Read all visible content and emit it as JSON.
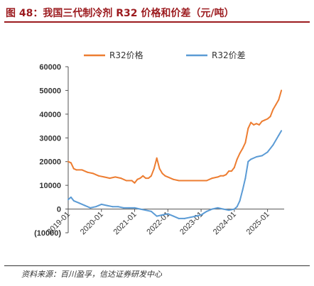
{
  "figure": {
    "title": "图 48：我国三代制冷剂 R32 价格和价差（元/吨）",
    "source": "资料来源：百川盈孚，信达证券研发中心"
  },
  "colors": {
    "title": "#9c1b1f",
    "price_line": "#ed7d31",
    "spread_line": "#5b9bd5",
    "negative_tick": "#c00000"
  },
  "chart_data": {
    "type": "line",
    "title": "",
    "xlabel": "",
    "ylabel": "",
    "ylim": [
      -10000,
      60000
    ],
    "yticks": [
      -10000,
      0,
      10000,
      20000,
      30000,
      40000,
      50000,
      60000
    ],
    "ytick_labels": [
      "(10000)",
      "0",
      "10000",
      "20000",
      "30000",
      "40000",
      "50000",
      "60000"
    ],
    "xlim": [
      "2019-01",
      "2025-07"
    ],
    "xticks": [
      "2019-01",
      "2020-01",
      "2021-01",
      "2022-01",
      "2023-01",
      "2024-01",
      "2025-01"
    ],
    "grid": false,
    "legend_position": "top",
    "series": [
      {
        "name": "R32价格",
        "color": "#ed7d31",
        "x": [
          "2019-01",
          "2019-02",
          "2019-03",
          "2019-04",
          "2019-06",
          "2019-08",
          "2019-10",
          "2019-12",
          "2020-02",
          "2020-04",
          "2020-06",
          "2020-08",
          "2020-10",
          "2020-12",
          "2021-01",
          "2021-02",
          "2021-03",
          "2021-04",
          "2021-05",
          "2021-06",
          "2021-07",
          "2021-08",
          "2021-09",
          "2021-10",
          "2021-11",
          "2021-12",
          "2022-01",
          "2022-03",
          "2022-05",
          "2022-07",
          "2022-09",
          "2022-11",
          "2023-01",
          "2023-03",
          "2023-05",
          "2023-07",
          "2023-08",
          "2023-09",
          "2023-10",
          "2023-11",
          "2023-12",
          "2024-01",
          "2024-02",
          "2024-03",
          "2024-04",
          "2024-05",
          "2024-06",
          "2024-07",
          "2024-08",
          "2024-09",
          "2024-10",
          "2024-11",
          "2024-12",
          "2025-01",
          "2025-02",
          "2025-03",
          "2025-04",
          "2025-05",
          "2025-06"
        ],
        "values": [
          20000,
          19500,
          17000,
          16500,
          16500,
          15500,
          15000,
          14000,
          13500,
          13000,
          13500,
          13000,
          12000,
          12000,
          11000,
          12500,
          13000,
          14000,
          13000,
          13000,
          14000,
          17000,
          21500,
          17000,
          15000,
          14000,
          13500,
          12500,
          12000,
          12000,
          12000,
          12000,
          12000,
          12000,
          13000,
          13500,
          14000,
          14000,
          14500,
          16000,
          16000,
          17500,
          21000,
          23500,
          25500,
          28000,
          34000,
          36500,
          35500,
          36000,
          35500,
          37000,
          37500,
          38000,
          39000,
          42000,
          44000,
          46000,
          50000
        ]
      },
      {
        "name": "R32价差",
        "color": "#5b9bd5",
        "x": [
          "2019-01",
          "2019-02",
          "2019-03",
          "2019-05",
          "2019-07",
          "2019-09",
          "2019-11",
          "2020-01",
          "2020-03",
          "2020-05",
          "2020-07",
          "2020-09",
          "2020-11",
          "2021-01",
          "2021-03",
          "2021-05",
          "2021-07",
          "2021-09",
          "2021-11",
          "2022-01",
          "2022-03",
          "2022-05",
          "2022-07",
          "2022-09",
          "2022-11",
          "2023-01",
          "2023-03",
          "2023-05",
          "2023-07",
          "2023-09",
          "2023-11",
          "2024-01",
          "2024-02",
          "2024-03",
          "2024-04",
          "2024-05",
          "2024-06",
          "2024-07",
          "2024-09",
          "2024-11",
          "2025-01",
          "2025-03",
          "2025-05",
          "2025-06"
        ],
        "values": [
          4000,
          5000,
          3500,
          2500,
          1500,
          500,
          1000,
          2000,
          1500,
          1000,
          1000,
          500,
          500,
          500,
          0,
          -500,
          -1000,
          -3000,
          -2500,
          -2000,
          -3000,
          -4000,
          -4000,
          -3500,
          -3000,
          -2500,
          -1000,
          0,
          500,
          0,
          -500,
          0,
          1000,
          3500,
          8000,
          13000,
          20000,
          21000,
          22000,
          22500,
          24000,
          27000,
          31000,
          33000
        ]
      }
    ]
  }
}
